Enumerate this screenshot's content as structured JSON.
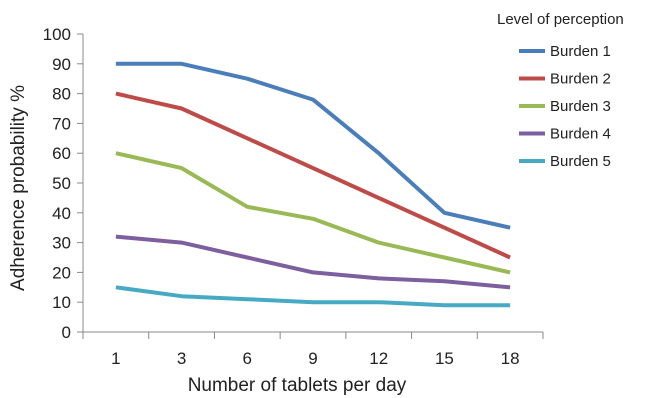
{
  "chart_data": {
    "type": "line",
    "categories": [
      "1",
      "3",
      "6",
      "9",
      "12",
      "15",
      "18"
    ],
    "xlabel": "Number of tablets per day",
    "ylabel": "Adherence probability %",
    "ylim": [
      0,
      100
    ],
    "yticks": [
      0,
      10,
      20,
      30,
      40,
      50,
      60,
      70,
      80,
      90,
      100
    ],
    "grid": false,
    "legend": {
      "title": "Level of perception",
      "placement": "top-right"
    },
    "series": [
      {
        "name": "Burden 1",
        "color": "#4a7ebb",
        "values": [
          90,
          90,
          85,
          78,
          60,
          40,
          35
        ]
      },
      {
        "name": "Burden 2",
        "color": "#be4b48",
        "values": [
          80,
          75,
          65,
          55,
          45,
          35,
          25
        ]
      },
      {
        "name": "Burden 3",
        "color": "#98b954",
        "values": [
          60,
          55,
          42,
          38,
          30,
          25,
          20
        ]
      },
      {
        "name": "Burden 4",
        "color": "#7d5fa0",
        "values": [
          32,
          30,
          25,
          20,
          18,
          17,
          15
        ]
      },
      {
        "name": "Burden 5",
        "color": "#46aac5",
        "values": [
          15,
          12,
          11,
          10,
          10,
          9,
          9
        ]
      }
    ]
  }
}
